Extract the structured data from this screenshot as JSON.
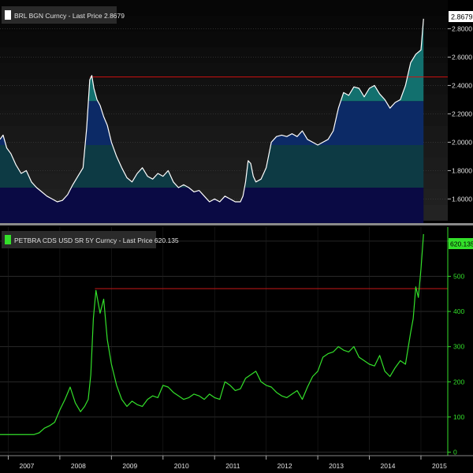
{
  "chart_data": [
    {
      "type": "area",
      "legend_text": "BRL BGN Curncy - Last Price 2.8679",
      "last_price_label": "2.8679",
      "ylim": [
        1.43,
        2.98
      ],
      "y_ticks": [
        "1.6000",
        "1.8000",
        "2.0000",
        "2.2000",
        "2.4000",
        "2.6000",
        "2.8000"
      ],
      "y_tick_values": [
        1.6,
        1.8,
        2.0,
        2.2,
        2.4,
        2.6,
        2.8
      ],
      "reference_level": 2.46,
      "colors": {
        "line": "#ffffff",
        "reference": "#d01010",
        "legend_swatch": "#ffffff"
      },
      "series": [
        {
          "x": [
            2006.84,
            2006.9,
            2006.97,
            2007.05,
            2007.15,
            2007.25,
            2007.35,
            2007.45,
            2007.55,
            2007.65,
            2007.75,
            2007.85,
            2007.95,
            2008.05,
            2008.15,
            2008.25,
            2008.35,
            2008.45,
            2008.52,
            2008.58,
            2008.62,
            2008.66,
            2008.72,
            2008.78,
            2008.85,
            2008.92,
            2009.0,
            2009.1,
            2009.2,
            2009.3,
            2009.4,
            2009.5,
            2009.6,
            2009.7,
            2009.8,
            2009.9,
            2010.0,
            2010.1,
            2010.2,
            2010.3,
            2010.4,
            2010.5,
            2010.6,
            2010.7,
            2010.8,
            2010.9,
            2011.0,
            2011.1,
            2011.2,
            2011.3,
            2011.4,
            2011.5,
            2011.55,
            2011.6,
            2011.65,
            2011.7,
            2011.75,
            2011.8,
            2011.9,
            2012.0,
            2012.1,
            2012.2,
            2012.3,
            2012.4,
            2012.5,
            2012.6,
            2012.7,
            2012.8,
            2012.9,
            2013.0,
            2013.1,
            2013.2,
            2013.3,
            2013.4,
            2013.5,
            2013.6,
            2013.7,
            2013.8,
            2013.9,
            2014.0,
            2014.1,
            2014.2,
            2014.3,
            2014.4,
            2014.5,
            2014.6,
            2014.7,
            2014.8,
            2014.9,
            2015.0,
            2015.05
          ],
          "y": [
            2.02,
            2.05,
            1.96,
            1.92,
            1.84,
            1.78,
            1.8,
            1.72,
            1.68,
            1.65,
            1.62,
            1.6,
            1.58,
            1.59,
            1.63,
            1.7,
            1.76,
            1.82,
            2.1,
            2.44,
            2.47,
            2.38,
            2.3,
            2.26,
            2.18,
            2.12,
            2.0,
            1.9,
            1.82,
            1.75,
            1.72,
            1.78,
            1.82,
            1.76,
            1.74,
            1.78,
            1.76,
            1.8,
            1.72,
            1.68,
            1.7,
            1.68,
            1.65,
            1.66,
            1.62,
            1.58,
            1.6,
            1.58,
            1.62,
            1.6,
            1.58,
            1.58,
            1.62,
            1.72,
            1.87,
            1.85,
            1.76,
            1.72,
            1.74,
            1.82,
            2.0,
            2.04,
            2.05,
            2.04,
            2.06,
            2.04,
            2.08,
            2.02,
            2.0,
            1.98,
            2.0,
            2.02,
            2.08,
            2.24,
            2.35,
            2.33,
            2.39,
            2.38,
            2.32,
            2.38,
            2.4,
            2.34,
            2.3,
            2.24,
            2.28,
            2.3,
            2.4,
            2.56,
            2.62,
            2.65,
            2.87
          ]
        }
      ]
    },
    {
      "type": "line",
      "legend_text": "PETBRA CDS USD SR 5Y Curncy - Last Price 620.135",
      "last_price_label": "620.135",
      "ylim": [
        -10,
        640
      ],
      "y_ticks": [
        "0",
        "100",
        "200",
        "300",
        "400",
        "500",
        "600"
      ],
      "y_tick_values": [
        0,
        100,
        200,
        300,
        400,
        500,
        600
      ],
      "reference_level": 465,
      "colors": {
        "line": "#33e02a",
        "reference": "#c81818",
        "axis_text": "#33e02a"
      },
      "series": [
        {
          "x": [
            2006.84,
            2006.95,
            2007.05,
            2007.2,
            2007.35,
            2007.5,
            2007.6,
            2007.7,
            2007.8,
            2007.9,
            2008.0,
            2008.1,
            2008.2,
            2008.3,
            2008.4,
            2008.48,
            2008.55,
            2008.6,
            2008.65,
            2008.7,
            2008.78,
            2008.85,
            2008.92,
            2009.0,
            2009.1,
            2009.2,
            2009.3,
            2009.4,
            2009.5,
            2009.6,
            2009.7,
            2009.8,
            2009.9,
            2010.0,
            2010.1,
            2010.2,
            2010.3,
            2010.4,
            2010.5,
            2010.6,
            2010.7,
            2010.8,
            2010.9,
            2011.0,
            2011.1,
            2011.2,
            2011.3,
            2011.4,
            2011.5,
            2011.6,
            2011.7,
            2011.8,
            2011.9,
            2012.0,
            2012.1,
            2012.2,
            2012.3,
            2012.4,
            2012.5,
            2012.6,
            2012.7,
            2012.8,
            2012.9,
            2013.0,
            2013.1,
            2013.2,
            2013.3,
            2013.4,
            2013.5,
            2013.6,
            2013.7,
            2013.8,
            2013.9,
            2014.0,
            2014.1,
            2014.2,
            2014.3,
            2014.4,
            2014.5,
            2014.6,
            2014.7,
            2014.8,
            2014.85,
            2014.9,
            2014.95,
            2015.0,
            2015.05
          ],
          "y": [
            50,
            50,
            50,
            50,
            50,
            50,
            55,
            68,
            75,
            85,
            120,
            150,
            185,
            140,
            115,
            130,
            150,
            220,
            380,
            460,
            395,
            435,
            320,
            250,
            190,
            150,
            130,
            145,
            135,
            130,
            150,
            160,
            155,
            190,
            185,
            170,
            160,
            150,
            155,
            165,
            160,
            150,
            165,
            155,
            150,
            200,
            190,
            175,
            180,
            210,
            220,
            230,
            200,
            190,
            185,
            170,
            160,
            155,
            165,
            175,
            150,
            185,
            215,
            230,
            270,
            280,
            285,
            300,
            290,
            285,
            300,
            270,
            260,
            250,
            245,
            275,
            230,
            215,
            240,
            260,
            250,
            340,
            380,
            470,
            440,
            520,
            620
          ]
        }
      ]
    }
  ],
  "x_axis_labels": [
    "2007",
    "2008",
    "2009",
    "2010",
    "2011",
    "2012",
    "2013",
    "2014",
    "2015"
  ],
  "x_axis_positions": [
    2007.0,
    2008.0,
    2009.0,
    2010.0,
    2011.0,
    2012.0,
    2013.0,
    2014.0,
    2015.0
  ]
}
